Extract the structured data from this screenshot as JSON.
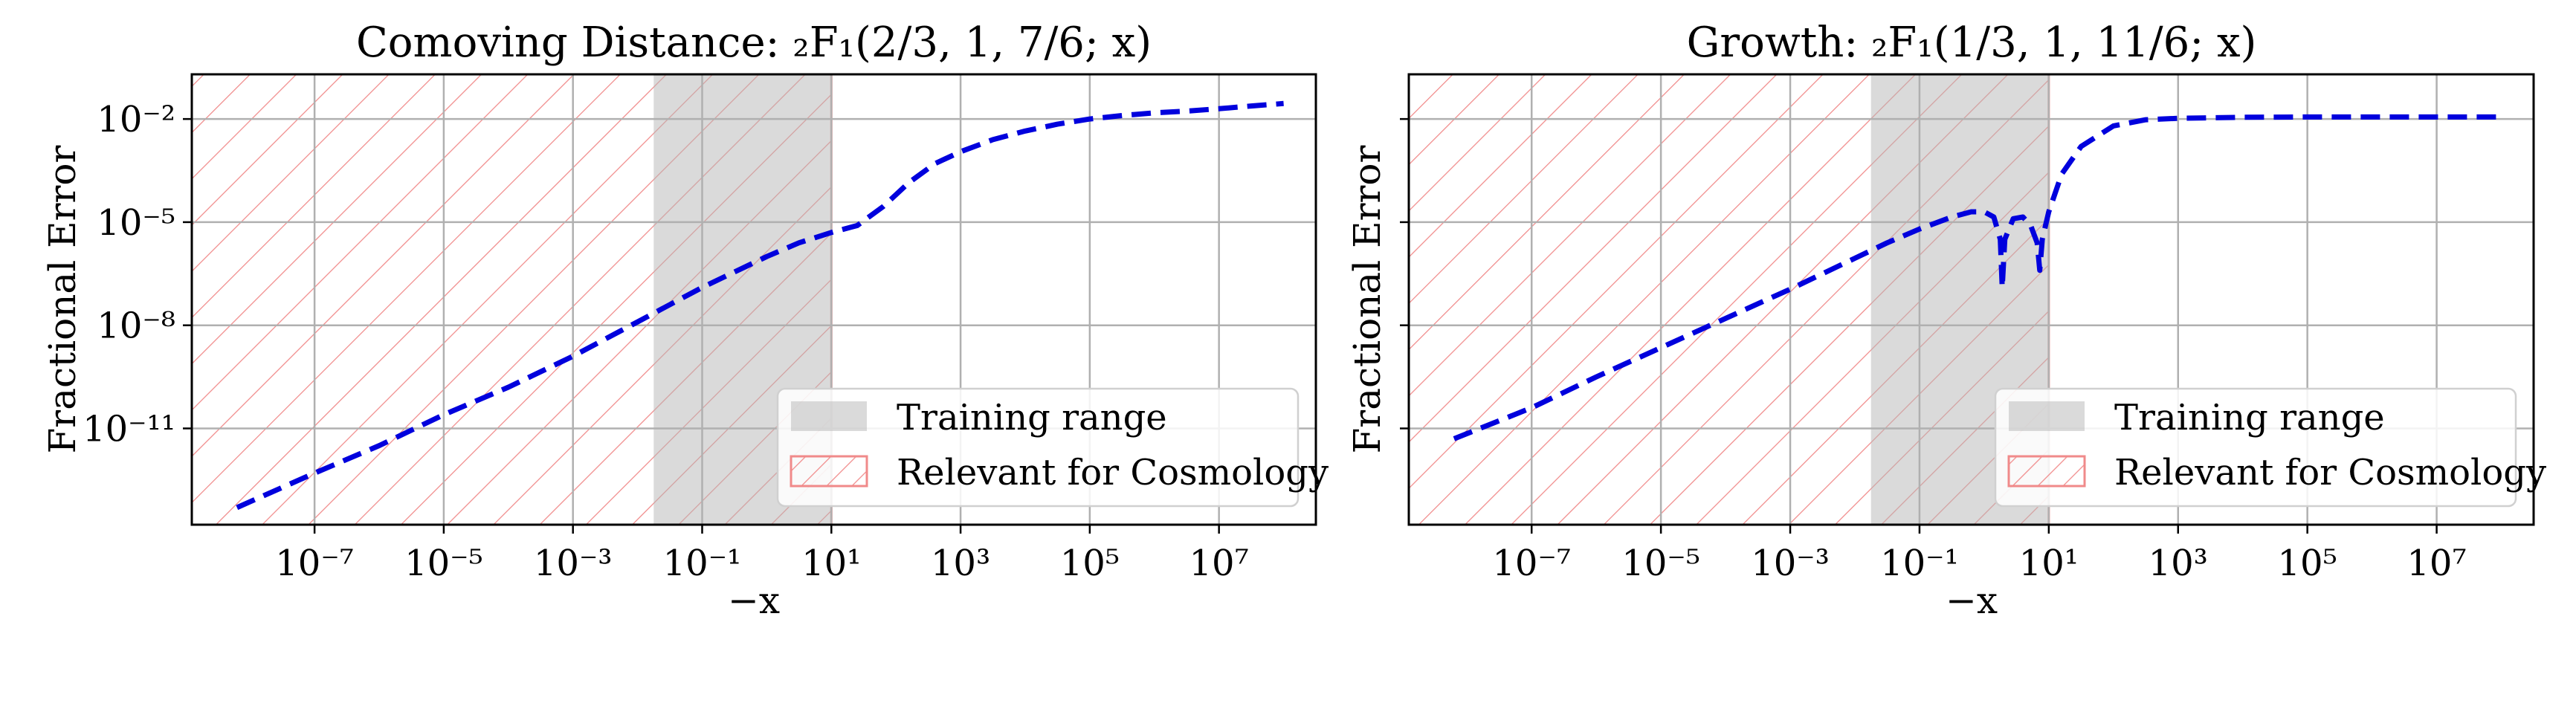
{
  "chart_data": [
    {
      "type": "line",
      "title": "Comoving Distance: ₂F₁(2/3, 1, 7/6; x)",
      "xlabel": "−x",
      "ylabel": "Fractional Error",
      "xscale": "log",
      "yscale": "log",
      "xlim_log10": [
        -8.9,
        8.5
      ],
      "ylim_log10": [
        -13.8,
        -0.7
      ],
      "xticks_log10": [
        -7,
        -5,
        -3,
        -1,
        1,
        3,
        5,
        7
      ],
      "xtick_labels": [
        "10⁻⁷",
        "10⁻⁵",
        "10⁻³",
        "10⁻¹",
        "10¹",
        "10³",
        "10⁵",
        "10⁷"
      ],
      "yticks_log10": [
        -2,
        -5,
        -8,
        -11
      ],
      "ytick_labels": [
        "10⁻²",
        "10⁻⁵",
        "10⁻⁸",
        "10⁻¹¹"
      ],
      "training_range_log10": [
        -1.75,
        1.0
      ],
      "relevant_range_log10": [
        -8.9,
        1.0
      ],
      "legend_position": "lower-right",
      "legend": [
        "Training range",
        "Relevant for Cosmology"
      ],
      "series": [
        {
          "name": "fractional error",
          "color": "#0000dd",
          "style": "dashed",
          "x_log10": [
            -8.2,
            -7,
            -6,
            -5,
            -4,
            -3,
            -2,
            -1.5,
            -1,
            -0.5,
            0,
            0.5,
            1,
            1.4,
            1.8,
            2.2,
            2.6,
            3,
            3.5,
            4,
            4.5,
            5,
            5.5,
            6,
            6.5,
            7,
            7.5,
            8
          ],
          "y_log10": [
            -13.3,
            -12.3,
            -11.5,
            -10.6,
            -9.8,
            -8.9,
            -7.9,
            -7.4,
            -6.9,
            -6.45,
            -6.0,
            -5.6,
            -5.3,
            -5.1,
            -4.55,
            -3.85,
            -3.3,
            -2.95,
            -2.6,
            -2.35,
            -2.15,
            -2.0,
            -1.9,
            -1.82,
            -1.77,
            -1.7,
            -1.62,
            -1.55
          ]
        }
      ]
    },
    {
      "type": "line",
      "title": "Growth: ₂F₁(1/3, 1, 11/6; x)",
      "xlabel": "−x",
      "ylabel": "Fractional Error",
      "xscale": "log",
      "yscale": "log",
      "xlim_log10": [
        -8.9,
        8.5
      ],
      "ylim_log10": [
        -13.8,
        -0.7
      ],
      "xticks_log10": [
        -7,
        -5,
        -3,
        -1,
        1,
        3,
        5,
        7
      ],
      "xtick_labels": [
        "10⁻⁷",
        "10⁻⁵",
        "10⁻³",
        "10⁻¹",
        "10¹",
        "10³",
        "10⁵",
        "10⁷"
      ],
      "yticks_log10": [
        -2,
        -5,
        -8,
        -11
      ],
      "ytick_labels": [
        "",
        "",
        "",
        ""
      ],
      "training_range_log10": [
        -1.75,
        1.0
      ],
      "relevant_range_log10": [
        -8.9,
        1.0
      ],
      "legend_position": "lower-right",
      "legend": [
        "Training range",
        "Relevant for Cosmology"
      ],
      "series": [
        {
          "name": "fractional error",
          "color": "#0000dd",
          "style": "dashed",
          "x_log10": [
            -8.2,
            -7,
            -6,
            -5,
            -4,
            -3,
            -2,
            -1.5,
            -1,
            -0.5,
            -0.2,
            0,
            0.15,
            0.25,
            0.28,
            0.32,
            0.45,
            0.6,
            0.72,
            0.82,
            0.86,
            0.9,
            1.0,
            1.2,
            1.5,
            2,
            2.5,
            3,
            4,
            5,
            6,
            7,
            8
          ],
          "y_log10": [
            -11.3,
            -10.4,
            -9.5,
            -8.65,
            -7.8,
            -6.95,
            -6.05,
            -5.6,
            -5.2,
            -4.85,
            -4.7,
            -4.7,
            -4.85,
            -5.5,
            -6.9,
            -5.5,
            -4.9,
            -4.85,
            -5.1,
            -5.6,
            -6.4,
            -5.5,
            -4.7,
            -3.6,
            -2.8,
            -2.2,
            -2.02,
            -1.98,
            -1.95,
            -1.94,
            -1.94,
            -1.94,
            -1.94
          ]
        }
      ]
    }
  ]
}
